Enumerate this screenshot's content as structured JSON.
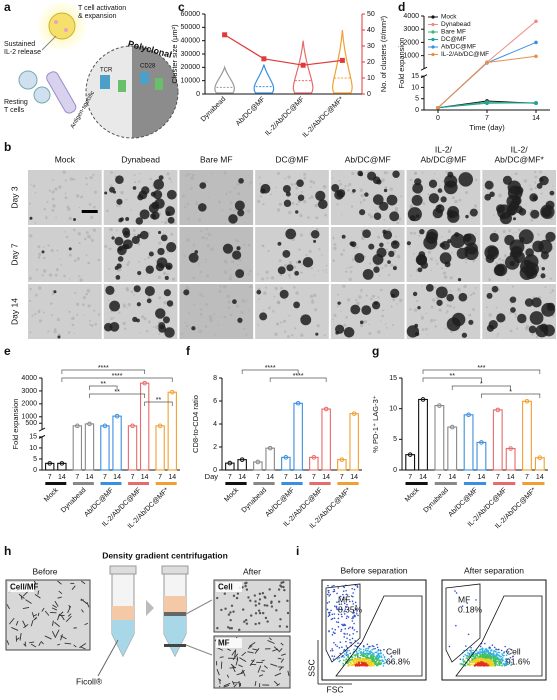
{
  "panel_labels": [
    "a",
    "b",
    "c",
    "d",
    "e",
    "f",
    "g",
    "h",
    "i"
  ],
  "panel_a": {
    "labels": [
      "T cell activation",
      "& expansion",
      "Sustained",
      "IL-2 release",
      "Resting",
      "T cells",
      "Antigen-specific",
      "Polyclonal",
      "TCR",
      "CD28"
    ]
  },
  "panel_b": {
    "columns": [
      [
        "Mock"
      ],
      [
        "Dynabead"
      ],
      [
        "Bare MF"
      ],
      [
        "DC@MF"
      ],
      [
        "Ab/DC@MF"
      ],
      [
        "IL-2/",
        "Ab/DC@MF"
      ],
      [
        "IL-2/",
        "Ab/DC@MF*"
      ]
    ],
    "rows": [
      "Day 3",
      "Day 7",
      "Day 14"
    ]
  },
  "panel_h": {
    "title": "Density gradient centrifugation",
    "before": "Before",
    "after": "After",
    "cell_mf": "Cell/MF",
    "cell": "Cell",
    "mf": "MF",
    "ficoll": "Ficoll®"
  },
  "panel_i": {
    "x_label": "FSC",
    "y_label": "SSC",
    "plots": [
      {
        "title": "Before separation",
        "gates": [
          {
            "name": "MF",
            "value": "8.35%"
          },
          {
            "name": "Cell",
            "value": "66.8%"
          }
        ]
      },
      {
        "title": "After separation",
        "gates": [
          {
            "name": "MF",
            "value": "0.18%"
          },
          {
            "name": "Cell",
            "value": "91.6%"
          }
        ]
      }
    ]
  },
  "chart_data": [
    {
      "type": "violin",
      "categories": [
        "Dynabead",
        "Ab/DC@MF",
        "IL-2/Ab/DC@MF",
        "IL-2/Ab/DC@MF*"
      ],
      "ylabel": "Cluster size (μm²)",
      "y2label": "No. of clusters (#/mm³)",
      "ylim": [
        0,
        60000
      ],
      "yticks": [
        0,
        10000,
        20000,
        30000,
        40000,
        50000,
        60000
      ],
      "y2lim": [
        0,
        50
      ],
      "y2ticks": [
        0,
        10,
        20,
        30,
        40,
        50
      ],
      "series": [
        {
          "color": "#9a9a9a",
          "colors": [
            "#9a9a9a",
            "#3a8fe0",
            "#e86a6a",
            "#f0a030"
          ],
          "values": [
            5000,
            5500,
            10000,
            12000
          ]
        },
        {
          "color": "#e03a3a",
          "axis": "y2",
          "values": [
            37,
            22,
            18,
            21
          ]
        }
      ]
    },
    {
      "type": "line",
      "xlabel": "Time (day)",
      "ylabel": "Fold expansion",
      "x": [
        0,
        7,
        14
      ],
      "xlim": [
        -2,
        16
      ],
      "xticks": [
        0,
        7,
        14
      ],
      "ylim": [
        0,
        4000
      ],
      "yticks": [
        0,
        5,
        10,
        15,
        1000,
        2000,
        3000,
        4000
      ],
      "axis_break": true,
      "legend": "top-left",
      "series": [
        {
          "name": "Mock",
          "color": "#111111",
          "values": [
            1,
            4,
            3
          ]
        },
        {
          "name": "Dynabead",
          "color": "#f08a8a",
          "values": [
            1,
            500,
            3600
          ]
        },
        {
          "name": "Bare MF",
          "color": "#3cb371",
          "values": [
            1,
            3.5,
            3
          ]
        },
        {
          "name": "DC@MF",
          "color": "#20a0a0",
          "values": [
            1,
            3,
            3.2
          ]
        },
        {
          "name": "Ab/DC@MF",
          "color": "#3a8fe0",
          "values": [
            1,
            450,
            2000
          ]
        },
        {
          "name": "IL-2/Ab/DC@MF",
          "color": "#e8904a",
          "values": [
            1,
            480,
            950
          ]
        }
      ]
    },
    {
      "type": "grouped",
      "ylabel": "Fold expansion",
      "categories": [
        "Mock",
        "Dynabead",
        "Ab/DC@MF",
        "IL-2/Ab/DC@MF",
        "IL-2/Ab/DC@MF*"
      ],
      "sub_categories": [
        "7",
        "14"
      ],
      "colors": [
        "#111111",
        "#888888",
        "#3a8fe0",
        "#e86a6a",
        "#f0a030"
      ],
      "values": [
        [
          3,
          3
        ],
        [
          300,
          450
        ],
        [
          300,
          1050
        ],
        [
          300,
          3600
        ],
        [
          300,
          2900
        ]
      ],
      "ylim": [
        0,
        4000
      ],
      "yticks": [
        0,
        5,
        10,
        15,
        500,
        1000,
        2000,
        3000,
        4000
      ],
      "axis_break": true,
      "annotations": [
        "****",
        "****",
        "**",
        "**",
        "**"
      ]
    },
    {
      "type": "grouped",
      "ylabel": "CD8-to-CD4 ratio",
      "xlabel": "Day",
      "categories": [
        "Mock",
        "Dynabead",
        "Ab/DC@MF",
        "IL-2/Ab/DC@MF",
        "IL-2/Ab/DC@MF*"
      ],
      "sub_categories": [
        "7",
        "14"
      ],
      "colors": [
        "#111111",
        "#888888",
        "#3a8fe0",
        "#e86a6a",
        "#f0a030"
      ],
      "values": [
        [
          0.6,
          0.9
        ],
        [
          0.7,
          1.9
        ],
        [
          1.1,
          5.8
        ],
        [
          1.1,
          5.3
        ],
        [
          0.9,
          4.9
        ]
      ],
      "ylim": [
        0,
        8
      ],
      "yticks": [
        0,
        2,
        4,
        6,
        8
      ],
      "annotations": [
        "****",
        "****"
      ]
    },
    {
      "type": "grouped",
      "ylabel": "% PD-1⁺ LAG-3⁺",
      "categories": [
        "Mock",
        "Dynabead",
        "Ab/DC@MF",
        "IL-2/Ab/DC@MF",
        "IL-2/Ab/DC@MF*"
      ],
      "sub_categories": [
        "7",
        "14"
      ],
      "colors": [
        "#111111",
        "#888888",
        "#3a8fe0",
        "#e86a6a",
        "#f0a030"
      ],
      "values": [
        [
          2.5,
          11.5
        ],
        [
          10.5,
          7
        ],
        [
          9,
          4.5
        ],
        [
          9.8,
          3.5
        ],
        [
          11.2,
          2
        ]
      ],
      "ylim": [
        0,
        15
      ],
      "yticks": [
        0,
        5,
        10,
        15
      ],
      "annotations": [
        "***",
        "**",
        "*",
        "*"
      ]
    }
  ]
}
